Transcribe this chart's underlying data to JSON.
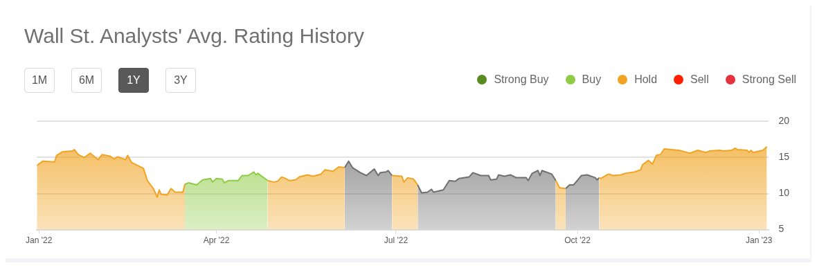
{
  "chart_data": {
    "type": "area",
    "title": "Wall St. Analysts' Avg. Rating History",
    "annotations": [
      "1M",
      "6M",
      "1Y",
      "3Y"
    ],
    "legend": "top right",
    "grid": "y",
    "marker": "none",
    "xlim": [
      "2021-12-31",
      "2023-01-06"
    ],
    "xticks": [
      {
        "value": "2022-01-01",
        "label": "Jan '22"
      },
      {
        "value": "2022-04-01",
        "label": "Apr '22"
      },
      {
        "value": "2022-07-01",
        "label": "Jul '22"
      },
      {
        "value": "2022-10-01",
        "label": "Oct '22"
      },
      {
        "value": "2023-01-01",
        "label": "Jan '23"
      }
    ],
    "ylim": [
      5,
      20
    ],
    "yticks": [
      5,
      10,
      15,
      20
    ],
    "series": [
      {
        "name": "Strong Buy",
        "color": "#5b8c1f"
      },
      {
        "name": "Buy",
        "color": "#8fcb45",
        "x": [
          "2022-03-16",
          "2022-03-18",
          "2022-03-22",
          "2022-03-25",
          "2022-03-29",
          "2022-03-30",
          "2022-04-01",
          "2022-04-04",
          "2022-04-05",
          "2022-04-07",
          "2022-04-12",
          "2022-04-14",
          "2022-04-17",
          "2022-04-20",
          "2022-04-21",
          "2022-04-22",
          "2022-04-27"
        ],
        "values": [
          11.3,
          11.5,
          11.2,
          11.9,
          12.1,
          11.6,
          12.1,
          12.0,
          11.5,
          11.8,
          11.8,
          12.5,
          12.5,
          13.0,
          12.6,
          12.8,
          11.8
        ]
      },
      {
        "name": "Hold",
        "color": "#f0a422",
        "x": [
          "2021-12-31",
          "2022-01-03",
          "2022-01-09",
          "2022-01-10",
          "2022-01-13",
          "2022-01-18",
          "2022-01-19",
          "2022-01-21",
          "2022-01-24",
          "2022-01-27",
          "2022-01-31",
          "2022-02-02",
          "2022-02-06",
          "2022-02-08",
          "2022-02-10",
          "2022-02-14",
          "2022-02-15",
          "2022-02-17",
          "2022-02-23",
          "2022-02-25",
          "2022-02-28",
          "2022-03-02",
          "2022-03-03",
          "2022-03-04",
          "2022-03-07",
          "2022-03-09",
          "2022-03-11",
          "2022-03-15",
          "2022-03-16"
        ],
        "values": [
          13.9,
          14.5,
          14.4,
          15.3,
          15.8,
          15.9,
          16.1,
          15.4,
          15.0,
          15.6,
          14.7,
          15.4,
          15.2,
          14.8,
          15.1,
          14.7,
          15.3,
          14.3,
          13.5,
          11.8,
          10.7,
          9.5,
          10.5,
          9.9,
          9.8,
          10.7,
          10.2,
          10.2,
          11.3
        ]
      },
      {
        "name": "Sell",
        "color": "#ff1f00"
      },
      {
        "name": "Strong Sell",
        "color": "#e5323e"
      },
      {
        "color": "#f0a422",
        "x": [
          "2022-04-27",
          "2022-04-30",
          "2022-05-02",
          "2022-05-04",
          "2022-05-06",
          "2022-05-08",
          "2022-05-11",
          "2022-05-13",
          "2022-05-17",
          "2022-05-20",
          "2022-05-24",
          "2022-05-26",
          "2022-05-30",
          "2022-06-02",
          "2022-06-05"
        ],
        "values": [
          11.8,
          11.6,
          11.7,
          12.3,
          12.1,
          11.8,
          11.9,
          12.3,
          12.6,
          12.4,
          12.7,
          13.3,
          13.1,
          13.7,
          13.6
        ]
      },
      {
        "color": "#f0a422",
        "x": [
          "2022-06-29",
          "2022-07-04",
          "2022-07-05",
          "2022-07-07",
          "2022-07-10",
          "2022-07-12"
        ],
        "values": [
          12.5,
          12.4,
          11.6,
          12.2,
          12.0,
          11.2
        ]
      },
      {
        "color": "#f0a422",
        "x": [
          "2022-09-20",
          "2022-09-22",
          "2022-09-25"
        ],
        "values": [
          11.8,
          10.8,
          10.7
        ]
      },
      {
        "color": "#f0a422",
        "x": [
          "2022-10-12",
          "2022-10-13",
          "2022-10-16",
          "2022-10-17",
          "2022-10-19",
          "2022-10-23",
          "2022-10-25",
          "2022-10-30",
          "2022-11-02",
          "2022-11-03",
          "2022-11-06",
          "2022-11-08",
          "2022-11-10",
          "2022-11-12",
          "2022-11-14",
          "2022-11-21",
          "2022-11-23",
          "2022-11-27",
          "2022-12-01",
          "2022-12-05",
          "2022-12-07",
          "2022-12-12",
          "2022-12-14",
          "2022-12-18",
          "2022-12-20",
          "2022-12-21",
          "2022-12-26",
          "2022-12-27",
          "2022-12-28",
          "2022-12-29",
          "2023-01-03",
          "2023-01-05"
        ],
        "values": [
          12.2,
          12.1,
          12.6,
          12.7,
          12.5,
          12.6,
          12.8,
          13.0,
          13.3,
          14.0,
          14.6,
          14.1,
          15.3,
          15.4,
          16.2,
          16.0,
          15.9,
          15.6,
          16.0,
          15.7,
          15.9,
          16.0,
          15.9,
          16.0,
          16.3,
          16.1,
          16.0,
          15.7,
          16.0,
          15.7,
          16.0,
          16.5
        ]
      },
      {
        "color": "#6f6f6f",
        "x": [
          "2022-06-05",
          "2022-06-07",
          "2022-06-09",
          "2022-06-13",
          "2022-06-16",
          "2022-06-20",
          "2022-06-22",
          "2022-06-23",
          "2022-06-26",
          "2022-06-27",
          "2022-06-29"
        ],
        "values": [
          13.6,
          14.5,
          13.6,
          12.9,
          12.5,
          13.4,
          12.5,
          12.9,
          13.0,
          13.2,
          12.5
        ]
      },
      {
        "color": "#6f6f6f",
        "x": [
          "2022-07-12",
          "2022-07-14",
          "2022-07-17",
          "2022-07-19",
          "2022-07-20",
          "2022-07-25",
          "2022-07-28",
          "2022-07-31",
          "2022-08-02",
          "2022-08-07",
          "2022-08-09",
          "2022-08-13",
          "2022-08-17",
          "2022-08-18",
          "2022-08-21",
          "2022-08-22",
          "2022-08-25",
          "2022-08-28",
          "2022-08-31",
          "2022-09-05",
          "2022-09-06",
          "2022-09-08",
          "2022-09-11",
          "2022-09-12",
          "2022-09-13",
          "2022-09-18",
          "2022-09-20"
        ],
        "values": [
          11.2,
          10.1,
          10.2,
          10.6,
          10.2,
          10.5,
          11.8,
          11.7,
          12.1,
          12.3,
          12.9,
          12.5,
          12.5,
          11.9,
          12.0,
          12.6,
          12.4,
          12.6,
          12.2,
          12.2,
          11.8,
          12.8,
          13.2,
          12.5,
          13.2,
          12.7,
          11.8
        ]
      },
      {
        "color": "#6f6f6f",
        "x": [
          "2022-09-25",
          "2022-09-27",
          "2022-09-29",
          "2022-10-03",
          "2022-10-06",
          "2022-10-10",
          "2022-10-11",
          "2022-10-12"
        ],
        "values": [
          10.7,
          11.2,
          11.2,
          12.5,
          12.6,
          12.2,
          11.9,
          12.2
        ]
      }
    ]
  }
}
